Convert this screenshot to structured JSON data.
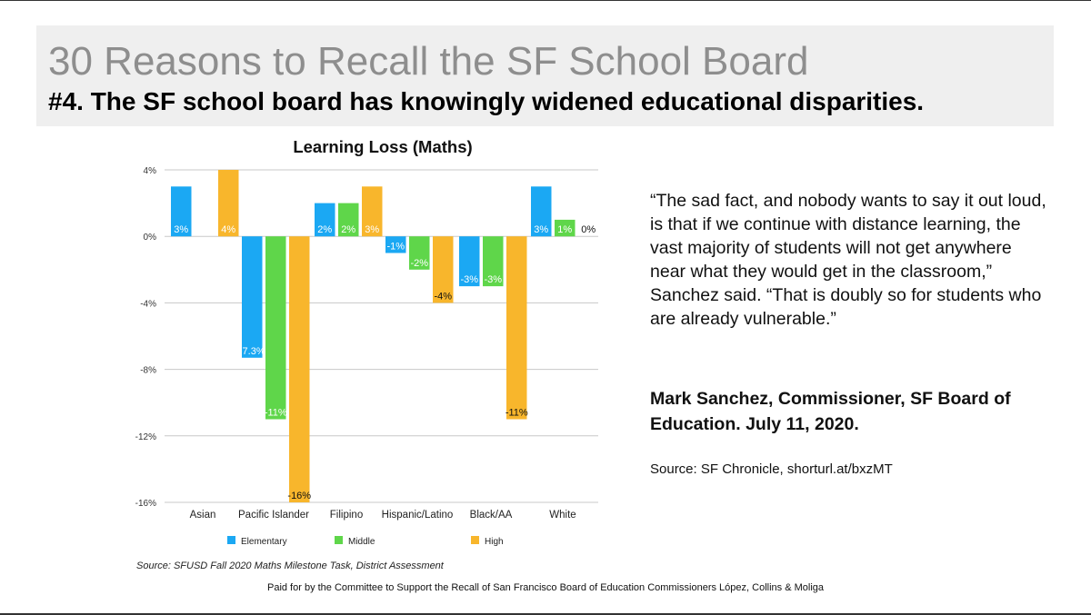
{
  "slide": {
    "title": "30 Reasons to Recall the SF School Board",
    "subtitle": "#4. The SF school board has knowingly widened educational disparities."
  },
  "quote": {
    "text": "“The sad fact, and nobody wants to say it out loud, is that if we continue with distance learning, the vast majority of students will not get anywhere near what they would get in the classroom,” Sanchez said. “That is doubly so for students who are already vulnerable.”",
    "attribution": "Mark Sanchez, Commissioner, SF Board of Education. July 11, 2020.",
    "source": "Source: SF Chronicle, shorturl.at/bxzMT"
  },
  "chart_source": "Source: SFUSD Fall 2020 Maths Milestone Task, District Assessment",
  "footer": "Paid for by the Committee to Support the Recall of San Francisco Board of Education Commissioners López, Collins & Moliga",
  "chart_data": {
    "type": "bar",
    "title": "Learning Loss (Maths)",
    "xlabel": "",
    "ylabel": "",
    "ylim": [
      -16,
      4
    ],
    "yticks": [
      "4%",
      "0%",
      "-4%",
      "-8%",
      "-12%",
      "-16%"
    ],
    "ytick_values": [
      4,
      0,
      -4,
      -8,
      -12,
      -16
    ],
    "grid": true,
    "legend_position": "bottom",
    "categories": [
      "Asian",
      "Pacific Islander",
      "Filipino",
      "Hispanic/Latino",
      "Black/AA",
      "White"
    ],
    "series": [
      {
        "name": "Elementary",
        "color": "#1ba8f3",
        "values": [
          3,
          -7.3,
          2,
          -1,
          -3,
          3
        ],
        "labels": [
          "3%",
          "-7.3%",
          "2%",
          "-1%",
          "-3%",
          "3%"
        ]
      },
      {
        "name": "Middle",
        "color": "#5fd64a",
        "values": [
          null,
          -11,
          2,
          -2,
          -3,
          1
        ],
        "labels": [
          "",
          "-11%",
          "2%",
          "-2%",
          "-3%",
          "1%"
        ]
      },
      {
        "name": "High",
        "color": "#f8b62c",
        "values": [
          4,
          -16,
          3,
          -4,
          -11,
          0
        ],
        "labels": [
          "4%",
          "-16%",
          "3%",
          "-4%",
          "-11%",
          "0%"
        ]
      }
    ]
  }
}
